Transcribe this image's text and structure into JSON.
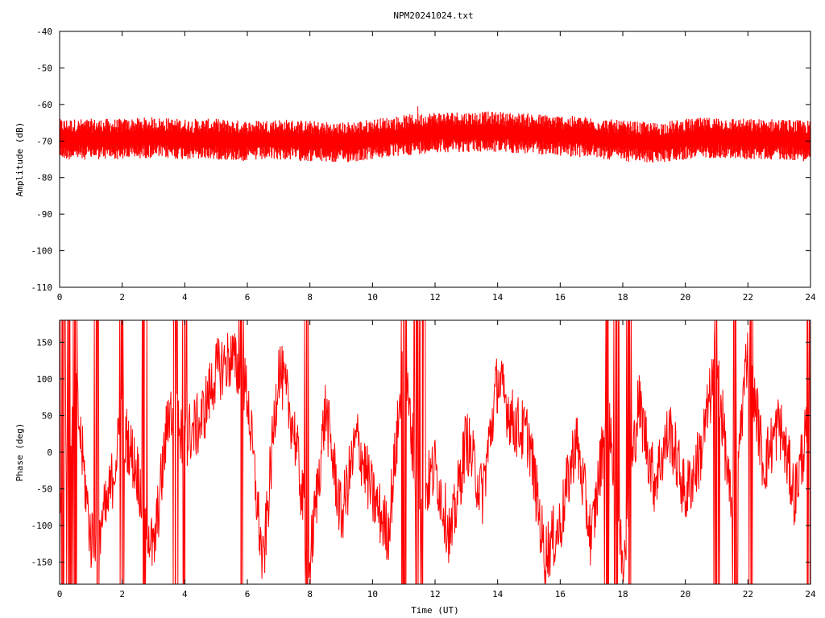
{
  "title": "NPM20241024.txt",
  "colors": {
    "trace": "#ff0000",
    "axis": "#000000",
    "background": "#ffffff"
  },
  "chart_data": [
    {
      "type": "line",
      "xlabel": "",
      "ylabel": "Amplitude (dB)",
      "xlim": [
        0,
        24
      ],
      "ylim": [
        -110,
        -40
      ],
      "xticks": [
        0,
        2,
        4,
        6,
        8,
        10,
        12,
        14,
        16,
        18,
        20,
        22,
        24
      ],
      "yticks": [
        -40,
        -50,
        -60,
        -70,
        -80,
        -90,
        -100,
        -110
      ],
      "xtick_labels": [
        "0",
        "2",
        "4",
        "6",
        "8",
        "10",
        "12",
        "14",
        "16",
        "18",
        "20",
        "22",
        "24"
      ],
      "ytick_labels": [
        "-40",
        "-50",
        "-60",
        "-70",
        "-80",
        "-90",
        "-100",
        "-110"
      ],
      "grid": false,
      "series": [
        {
          "x": [
            0,
            1,
            2,
            3,
            4,
            5,
            6,
            7,
            8,
            9,
            10,
            11,
            12,
            13,
            14,
            15,
            16,
            17,
            18,
            19,
            20,
            21,
            22,
            23,
            24
          ],
          "mean": [
            -69.5,
            -69.5,
            -69.5,
            -69,
            -69.5,
            -69.5,
            -70,
            -69.5,
            -70,
            -70.5,
            -69.5,
            -68.5,
            -67.5,
            -67.5,
            -67.5,
            -68,
            -68.5,
            -69,
            -70,
            -70.5,
            -69.5,
            -69,
            -69.5,
            -69.5,
            -70
          ],
          "spread_db": 3.5,
          "peak_x": 11.45,
          "peak_y": -60.5
        }
      ]
    },
    {
      "type": "line",
      "xlabel": "Time (UT)",
      "ylabel": "Phase (deg)",
      "xlim": [
        0,
        24
      ],
      "ylim": [
        -180,
        180
      ],
      "xticks": [
        0,
        2,
        4,
        6,
        8,
        10,
        12,
        14,
        16,
        18,
        20,
        22,
        24
      ],
      "yticks": [
        150,
        100,
        50,
        0,
        -50,
        -100,
        -150
      ],
      "xtick_labels": [
        "0",
        "2",
        "4",
        "6",
        "8",
        "10",
        "12",
        "14",
        "16",
        "18",
        "20",
        "22",
        "24"
      ],
      "ytick_labels": [
        "150",
        "100",
        "50",
        "0",
        "-50",
        "-100",
        "-150"
      ],
      "grid": false,
      "series": [
        {
          "x": [
            0,
            0.5,
            1,
            1.5,
            2,
            2.5,
            3,
            3.5,
            4,
            4.5,
            5,
            5.5,
            6,
            6.5,
            7,
            7.5,
            8,
            8.5,
            9,
            9.5,
            10,
            10.5,
            11,
            11.5,
            12,
            12.5,
            13,
            13.5,
            14,
            14.5,
            15,
            15.5,
            16,
            16.5,
            17,
            17.5,
            18,
            18.5,
            19,
            19.5,
            20,
            20.5,
            21,
            21.5,
            22,
            22.5,
            23,
            23.5,
            24
          ],
          "y": [
            -60,
            90,
            -120,
            -80,
            40,
            -30,
            -140,
            60,
            20,
            40,
            110,
            130,
            80,
            -160,
            120,
            30,
            -150,
            60,
            -90,
            20,
            -60,
            -110,
            120,
            -70,
            -20,
            -120,
            20,
            -60,
            100,
            40,
            20,
            -140,
            -100,
            20,
            -120,
            60,
            -150,
            70,
            -40,
            30,
            -60,
            0,
            130,
            -100,
            150,
            -20,
            40,
            -60,
            60
          ],
          "wrap_hours": [
            0.1,
            0.3,
            0.5,
            1.2,
            2.0,
            2.7,
            3.7,
            4.0,
            5.8,
            7.9,
            11.0,
            11.4,
            11.6,
            17.5,
            17.8,
            18.2,
            21.0,
            21.6,
            22.1,
            23.9
          ]
        }
      ]
    }
  ]
}
